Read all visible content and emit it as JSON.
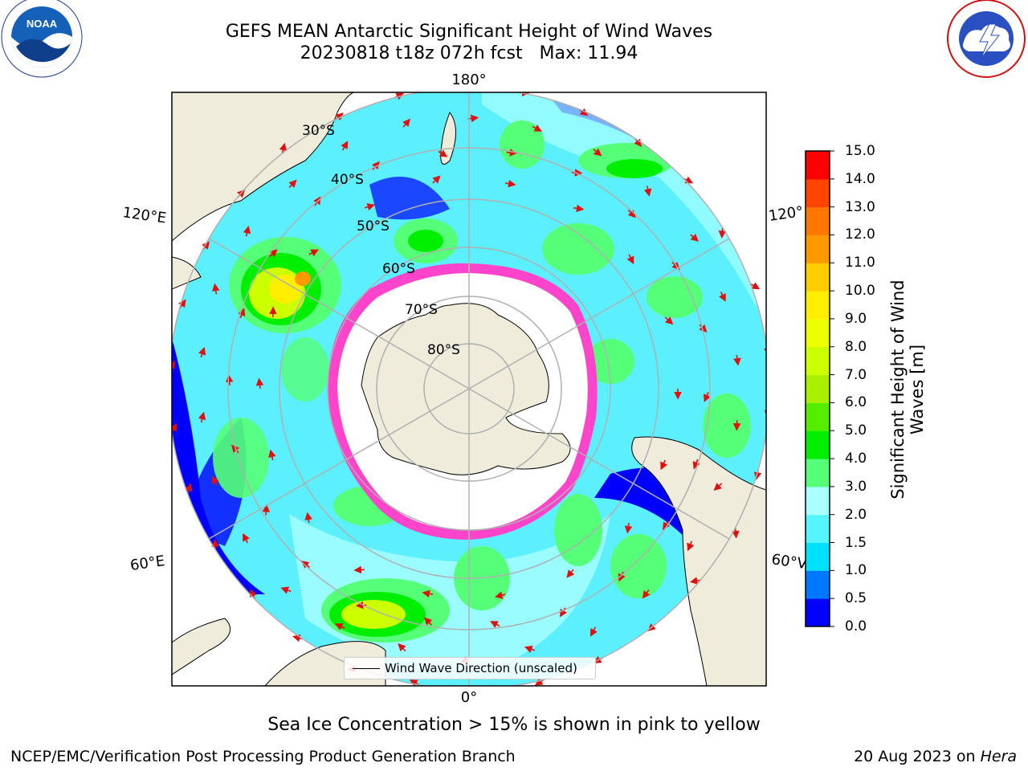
{
  "title": {
    "line1": "GEFS MEAN Antarctic Significant Height of Wind Waves",
    "line2": "20230818 t18z 072h fcst   Max: 11.94"
  },
  "logos": {
    "noaa_text": "NOAA",
    "noaa_ring": "NATIONAL OCEANIC AND ATMOSPHERIC ADMINISTRATION · U.S. DEPARTMENT OF COMMERCE",
    "nws_ring": "NATIONAL WEATHER SERVICE"
  },
  "map": {
    "lon_labels": {
      "top": "180°",
      "bottom": "0°",
      "upper_left": "120°E",
      "lower_left": "60°E",
      "upper_right": "120°",
      "lower_right": "60°V"
    },
    "lat_labels": [
      "30°S",
      "40°S",
      "50°S",
      "60°S",
      "70°S",
      "80°S"
    ],
    "colors": {
      "land": "#efecdc",
      "ice": "#ffffff",
      "ice_edge": "#ff44cc",
      "arrow": "#e01010",
      "grid": "#b0b0b0"
    }
  },
  "legend": {
    "label": "Wind Wave Direction (unscaled)"
  },
  "colorbar": {
    "label": "Significant Height of Wind Waves [m]",
    "ticks": [
      "0.0",
      "0.5",
      "1.0",
      "1.5",
      "2.0",
      "3.0",
      "4.0",
      "5.0",
      "6.0",
      "7.0",
      "8.0",
      "9.0",
      "10.0",
      "11.0",
      "12.0",
      "13.0",
      "14.0",
      "15.0"
    ],
    "colors": [
      "#0000ff",
      "#0077ff",
      "#00e0ff",
      "#55f5ff",
      "#aaffff",
      "#55ff77",
      "#00ee00",
      "#55ee00",
      "#aaee00",
      "#ccff00",
      "#eeff00",
      "#ffee00",
      "#ffcc00",
      "#ff9900",
      "#ff7700",
      "#ff4400",
      "#ff0000"
    ]
  },
  "ice_note": "Sea Ice Concentration > 15% is shown in pink to yellow",
  "footer": {
    "credit": "NCEP/EMC/Verification Post Processing Product Generation Branch",
    "date_prefix": "20 Aug 2023 on ",
    "machine": "Hera"
  }
}
